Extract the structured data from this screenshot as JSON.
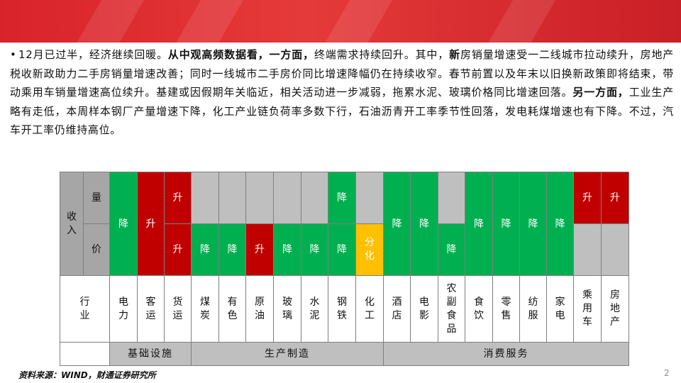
{
  "paragraph": {
    "bullet": "•",
    "s1": "12月已过半，经济继续回暖。",
    "s2": "从中观高频数据看，一方面，",
    "s3": "终端需求持续回升。其中，",
    "s4": "新",
    "s5": "房销量增速受一二线城市拉动续升，房地产税收新政助力二手房销量增速改善；同时一线城市二手房价同比增速降幅仍在持续收窄。春节前置以及年末以旧换新政策即将结束，带动乘用车销量增速高位续升。基建或因假期年关临近，相关活动进一步减弱，拖累水泥、玻璃价格同比增速回落。",
    "s6": "另一方面，",
    "s7": "工业生产略有走低，本周样本钢厂产量增速下降，化工产业链负荷率多数下行，石油沥青开工率季节性回落，发电耗煤增速也有下降。不过，汽车开工率仍维持高位。"
  },
  "table": {
    "row_header_income": "收入",
    "row_header_volume": "量",
    "row_header_price": "价",
    "row_header_industry": "行业",
    "industries": [
      "电力",
      "客运",
      "货运",
      "煤炭",
      "有色",
      "原油",
      "玻璃",
      "水泥",
      "钢铁",
      "化工",
      "酒店",
      "电影",
      "农副食品",
      "食饮",
      "零售",
      "纺服",
      "家电",
      "乘用车",
      "房地产"
    ],
    "volume": [
      "降",
      "升",
      "升",
      "",
      "",
      "",
      "",
      "",
      "降",
      "",
      "降",
      "降",
      "",
      "降",
      "降",
      "降",
      "降",
      "升",
      "升"
    ],
    "price": [
      "",
      "",
      "升",
      "降",
      "降",
      "升",
      "降",
      "降",
      "降",
      "分化",
      "",
      "",
      "降",
      "",
      "",
      "",
      "",
      "",
      ""
    ],
    "categories": [
      {
        "label": "基础设施"
      },
      {
        "label": "生产制造"
      },
      {
        "label": "消费服务"
      }
    ]
  },
  "colors": {
    "down": "#00b050",
    "up": "#c00000",
    "mixed": "#ffc000",
    "none": "#bfbfbf",
    "header": "#a6a6a6",
    "banner": "#d8232a"
  },
  "footer": {
    "source": "资料来源：WIND，财通证券研究所",
    "page": "2"
  }
}
